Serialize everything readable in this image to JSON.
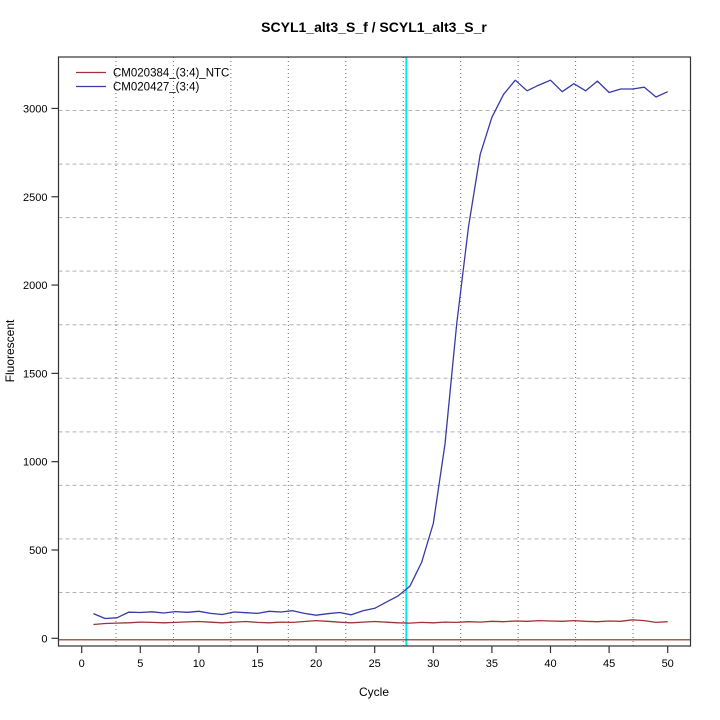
{
  "chart_data": {
    "type": "line",
    "title": "SCYL1_alt3_S_f / SCYL1_alt3_S_r",
    "xlabel": "Cycle",
    "ylabel": "Fluorescent",
    "x_ticks": [
      0,
      5,
      10,
      15,
      20,
      25,
      30,
      35,
      40,
      45,
      50
    ],
    "y_ticks": [
      0,
      500,
      1000,
      1500,
      2000,
      2500,
      3000
    ],
    "xlim": [
      0,
      50
    ],
    "ylim": [
      0,
      3290
    ],
    "grid": {
      "nx": 11,
      "ny": 11,
      "vline_color": "#6e6e6e",
      "hline_color": "#b3b3b3"
    },
    "x": [
      1,
      2,
      3,
      4,
      5,
      6,
      7,
      8,
      9,
      10,
      11,
      12,
      13,
      14,
      15,
      16,
      17,
      18,
      19,
      20,
      21,
      22,
      23,
      24,
      25,
      26,
      27,
      28,
      29,
      30,
      31,
      32,
      33,
      34,
      35,
      36,
      37,
      38,
      39,
      40,
      41,
      42,
      43,
      44,
      45,
      46,
      47,
      48,
      49,
      50
    ],
    "series": [
      {
        "name": "CM020384_(3:4)_NTC",
        "color": "#a03434",
        "values": [
          78,
          84,
          86,
          88,
          92,
          90,
          88,
          90,
          93,
          95,
          91,
          88,
          92,
          95,
          90,
          88,
          92,
          90,
          95,
          100,
          96,
          91,
          88,
          92,
          95,
          91,
          88,
          86,
          90,
          88,
          92,
          90,
          94,
          92,
          96,
          94,
          98,
          96,
          100,
          98,
          96,
          100,
          96,
          94,
          98,
          96,
          105,
          100,
          90,
          94
        ]
      },
      {
        "name": "CM020427_(3:4)",
        "color": "#3939a8",
        "values": [
          140,
          112,
          116,
          148,
          146,
          150,
          143,
          151,
          147,
          153,
          141,
          135,
          149,
          145,
          141,
          153,
          149,
          156,
          141,
          131,
          139,
          146,
          133,
          156,
          170,
          205,
          240,
          295,
          430,
          650,
          1100,
          1780,
          2330,
          2740,
          2950,
          3080,
          3160,
          3100,
          3132,
          3160,
          3095,
          3140,
          3100,
          3155,
          3090,
          3110,
          3110,
          3120,
          3065,
          3095
        ]
      }
    ],
    "threshold_vline": {
      "x": 27.7,
      "color": "#00e8e8"
    },
    "baseline_hline": {
      "y": 0,
      "color": "#8b2525"
    },
    "legend_position": "top-left"
  }
}
